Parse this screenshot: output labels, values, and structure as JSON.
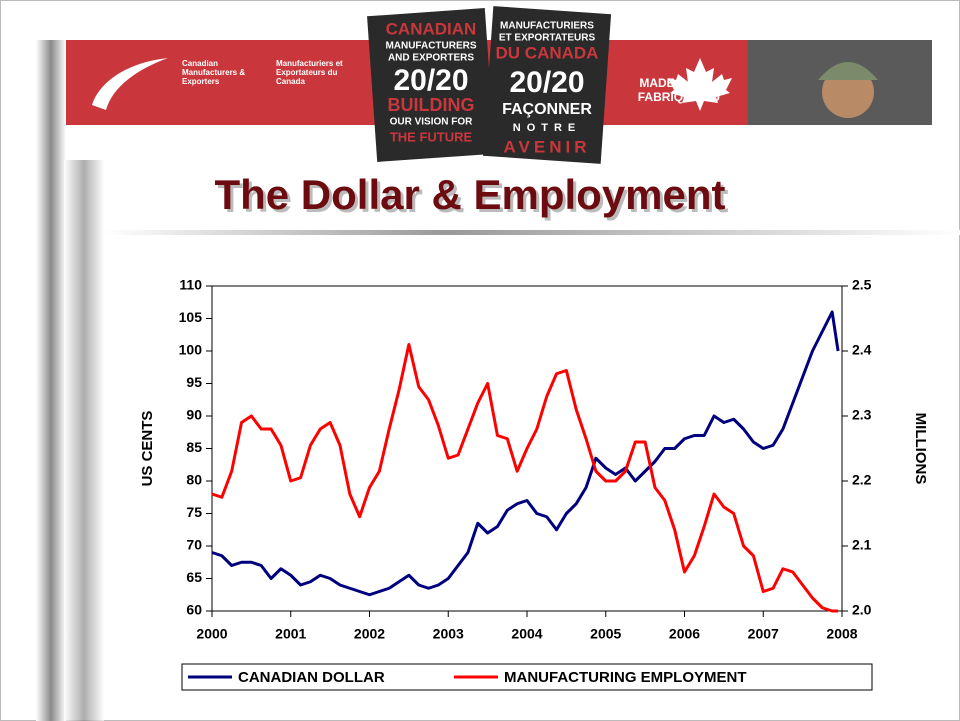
{
  "header": {
    "org_en": [
      "Canadian",
      "Manufacturers &",
      "Exporters"
    ],
    "org_fr": [
      "Manufacturiers et",
      "Exportateurs du",
      "Canada"
    ],
    "logo_en": [
      "CANADIAN",
      "MANUFACTURERS",
      "AND EXPORTERS",
      "20/20",
      "BUILDING",
      "OUR VISION FOR",
      "THE FUTURE"
    ],
    "logo_fr": [
      "MANUFACTURIERS",
      "ET EXPORTATEURS",
      "DU CANADA",
      "20/20",
      "FAÇONNER",
      "NOTRE",
      "AVENIR"
    ],
    "made_in": [
      "MADE IN",
      "FABRIQUÉ AU"
    ]
  },
  "chart_data": {
    "type": "line",
    "title": "The Dollar & Employment",
    "y_label": "US CENTS",
    "y2_label": "MILLIONS",
    "x": [
      2000,
      2000.125,
      2000.25,
      2000.375,
      2000.5,
      2000.625,
      2000.75,
      2000.875,
      2001,
      2001.125,
      2001.25,
      2001.375,
      2001.5,
      2001.625,
      2001.75,
      2001.875,
      2002,
      2002.125,
      2002.25,
      2002.375,
      2002.5,
      2002.625,
      2002.75,
      2002.875,
      2003,
      2003.125,
      2003.25,
      2003.375,
      2003.5,
      2003.625,
      2003.75,
      2003.875,
      2004,
      2004.125,
      2004.25,
      2004.375,
      2004.5,
      2004.625,
      2004.75,
      2004.875,
      2005,
      2005.125,
      2005.25,
      2005.375,
      2005.5,
      2005.625,
      2005.75,
      2005.875,
      2006,
      2006.125,
      2006.25,
      2006.375,
      2006.5,
      2006.625,
      2006.75,
      2006.875,
      2007,
      2007.125,
      2007.25,
      2007.375,
      2007.5,
      2007.625,
      2007.75,
      2007.875,
      2007.95
    ],
    "series": [
      {
        "name": "CANADIAN DOLLAR",
        "color": "#00007f",
        "axis": "y",
        "values": [
          69,
          68.5,
          67,
          67.5,
          67.5,
          67,
          65,
          66.5,
          65.5,
          64,
          64.5,
          65.5,
          65,
          64,
          63.5,
          63,
          62.5,
          63,
          63.5,
          64.5,
          65.5,
          64,
          63.5,
          64,
          65,
          67,
          69,
          73.5,
          72,
          73,
          75.5,
          76.5,
          77,
          75,
          74.5,
          72.5,
          75,
          76.5,
          79,
          83.5,
          82,
          81,
          82,
          80,
          81.5,
          83,
          85,
          85,
          86.5,
          87,
          87,
          90,
          89,
          89.5,
          88,
          86,
          85,
          85.5,
          88,
          92,
          96,
          100,
          103,
          106,
          100
        ]
      },
      {
        "name": "MANUFACTURING EMPLOYMENT",
        "color": "#ff0000",
        "axis": "y2",
        "values": [
          2.18,
          2.175,
          2.215,
          2.29,
          2.3,
          2.28,
          2.28,
          2.255,
          2.2,
          2.205,
          2.255,
          2.28,
          2.29,
          2.255,
          2.18,
          2.145,
          2.19,
          2.215,
          2.28,
          2.34,
          2.41,
          2.345,
          2.325,
          2.285,
          2.235,
          2.24,
          2.28,
          2.32,
          2.35,
          2.27,
          2.265,
          2.215,
          2.25,
          2.28,
          2.33,
          2.365,
          2.37,
          2.31,
          2.265,
          2.215,
          2.2,
          2.2,
          2.215,
          2.26,
          2.26,
          2.19,
          2.17,
          2.125,
          2.06,
          2.085,
          2.13,
          2.18,
          2.16,
          2.15,
          2.1,
          2.085,
          2.03,
          2.035,
          2.065,
          2.06,
          2.04,
          2.02,
          2.005,
          2.0,
          2.0
        ]
      }
    ],
    "xlim": [
      2000,
      2008
    ],
    "xticks": [
      2000,
      2001,
      2002,
      2003,
      2004,
      2005,
      2006,
      2007,
      2008
    ],
    "ylim": [
      60,
      110
    ],
    "yticks": [
      60,
      65,
      70,
      75,
      80,
      85,
      90,
      95,
      100,
      105,
      110
    ],
    "y2lim": [
      2.0,
      2.5
    ],
    "y2ticks": [
      {
        "value": 2,
        "label": "2.0"
      },
      2.1,
      2.2,
      2.3,
      2.4,
      2.5
    ],
    "grid": false,
    "legend": "bottom"
  }
}
